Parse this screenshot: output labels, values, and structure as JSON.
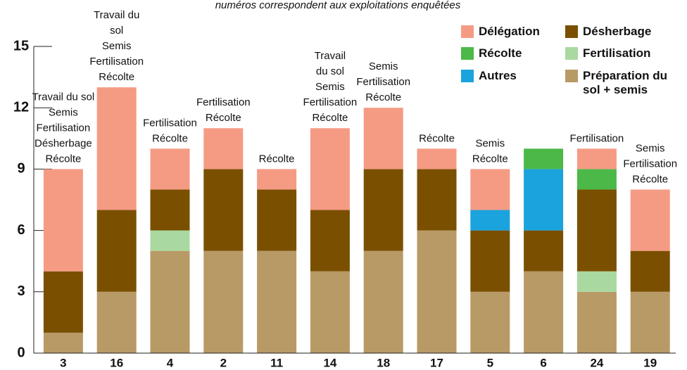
{
  "chart_data": {
    "type": "stacked_bar",
    "subtitle": "numéros correspondent aux exploitations enquêtées",
    "categories": [
      "3",
      "16",
      "4",
      "2",
      "11",
      "14",
      "18",
      "17",
      "5",
      "6",
      "24",
      "19"
    ],
    "series": [
      {
        "name": "Préparation du sol + semis",
        "color": "#b89a66",
        "values": [
          1,
          3,
          5,
          5,
          5,
          4,
          5,
          6,
          3,
          4,
          3,
          3
        ]
      },
      {
        "name": "Fertilisation",
        "color": "#a9d9a0",
        "values": [
          null,
          null,
          1,
          null,
          null,
          null,
          null,
          null,
          null,
          null,
          1,
          null
        ]
      },
      {
        "name": "Désherbage",
        "color": "#7a5000",
        "values": [
          3,
          4,
          2,
          4,
          3,
          3,
          4,
          3,
          3,
          2,
          4,
          2
        ]
      },
      {
        "name": "Autres",
        "color": "#1aa3dc",
        "values": [
          null,
          null,
          null,
          null,
          null,
          null,
          null,
          null,
          1,
          3,
          null,
          null
        ]
      },
      {
        "name": "Récolte",
        "color": "#4cb848",
        "values": [
          null,
          null,
          null,
          null,
          null,
          null,
          null,
          null,
          null,
          1,
          1,
          null
        ]
      },
      {
        "name": "Délégation",
        "color": "#f59b84",
        "values": [
          5,
          6,
          2,
          2,
          1,
          4,
          3,
          1,
          2,
          null,
          1,
          3
        ]
      }
    ],
    "annotations": [
      {
        "category": "3",
        "lines": [
          "Travail du sol",
          "Semis",
          "Fertilisation",
          "Désherbage",
          "Récolte"
        ]
      },
      {
        "category": "16",
        "lines": [
          "Travail du",
          "sol",
          "Semis",
          "Fertilisation",
          "Récolte"
        ]
      },
      {
        "category": "4",
        "lines": [
          "Fertilisation",
          "Récolte"
        ]
      },
      {
        "category": "2",
        "lines": [
          "Fertilisation",
          "Récolte"
        ]
      },
      {
        "category": "11",
        "lines": [
          "Récolte"
        ]
      },
      {
        "category": "14",
        "lines": [
          "Travail",
          "du sol",
          "Semis",
          "Fertilisation",
          "Récolte"
        ]
      },
      {
        "category": "18",
        "lines": [
          "Semis",
          "Fertilisation",
          "Récolte"
        ]
      },
      {
        "category": "17",
        "lines": [
          "Récolte"
        ]
      },
      {
        "category": "5",
        "lines": [
          "Semis",
          "Récolte"
        ]
      },
      {
        "category": "24",
        "lines": [
          "Fertilisation"
        ]
      },
      {
        "category": "19",
        "lines": [
          "Semis",
          "Fertilisation",
          "Récolte"
        ]
      }
    ],
    "ylim": [
      0,
      15
    ],
    "yticks": [
      0,
      3,
      6,
      9,
      12,
      15
    ]
  }
}
